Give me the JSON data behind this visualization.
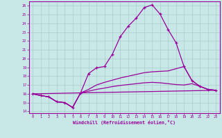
{
  "background_color": "#c8e8e8",
  "grid_color": "#aacccc",
  "line_color": "#990099",
  "xlabel": "Windchill (Refroidissement éolien,°C)",
  "xlim": [
    -0.5,
    23.5
  ],
  "ylim": [
    13.8,
    26.5
  ],
  "yticks": [
    14,
    15,
    16,
    17,
    18,
    19,
    20,
    21,
    22,
    23,
    24,
    25,
    26
  ],
  "xticks": [
    0,
    1,
    2,
    3,
    4,
    5,
    6,
    7,
    8,
    9,
    10,
    11,
    12,
    13,
    14,
    15,
    16,
    17,
    18,
    19,
    20,
    21,
    22,
    23
  ],
  "line1_x": [
    0,
    1,
    2,
    3,
    4,
    5,
    6,
    7,
    8,
    9,
    10,
    11,
    12,
    13,
    14,
    15,
    16,
    17,
    18,
    19,
    20,
    21,
    22,
    23
  ],
  "line1_y": [
    16.0,
    15.8,
    15.65,
    15.1,
    15.0,
    14.45,
    16.1,
    18.3,
    18.95,
    19.1,
    20.5,
    22.5,
    23.7,
    24.6,
    25.8,
    26.1,
    25.05,
    23.3,
    21.8,
    19.1,
    17.5,
    16.85,
    16.5,
    16.4
  ],
  "line2_x": [
    0,
    1,
    2,
    3,
    4,
    5,
    6,
    7,
    8,
    9,
    10,
    11,
    12,
    13,
    14,
    15,
    16,
    17,
    18,
    19,
    20,
    21,
    22,
    23
  ],
  "line2_y": [
    16.0,
    15.8,
    15.65,
    15.1,
    15.0,
    14.45,
    16.1,
    16.5,
    17.0,
    17.3,
    17.55,
    17.8,
    18.0,
    18.2,
    18.4,
    18.5,
    18.55,
    18.6,
    18.85,
    19.1,
    17.5,
    16.85,
    16.5,
    16.4
  ],
  "line3_x": [
    0,
    23
  ],
  "line3_y": [
    16.0,
    16.4
  ],
  "line4_x": [
    0,
    1,
    2,
    3,
    4,
    5,
    6,
    7,
    8,
    9,
    10,
    11,
    12,
    13,
    14,
    15,
    16,
    17,
    18,
    19,
    20,
    21,
    22,
    23
  ],
  "line4_y": [
    16.0,
    15.8,
    15.65,
    15.1,
    15.0,
    14.45,
    16.1,
    16.3,
    16.5,
    16.65,
    16.82,
    16.95,
    17.05,
    17.15,
    17.25,
    17.3,
    17.25,
    17.15,
    17.05,
    17.0,
    17.15,
    16.85,
    16.5,
    16.4
  ]
}
